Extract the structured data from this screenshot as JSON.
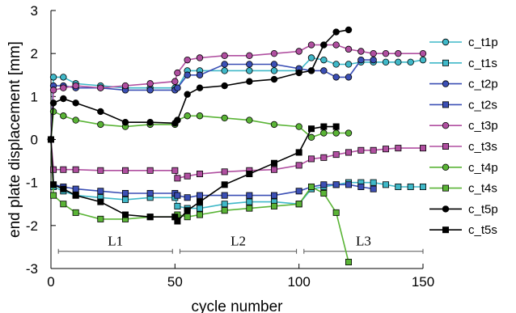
{
  "chart_data": {
    "type": "line",
    "xlabel": "cycle number",
    "ylabel": "end plate displacement [mm]",
    "xlim": [
      0,
      150
    ],
    "ylim": [
      -3,
      3
    ],
    "x_ticks": [
      0,
      50,
      100,
      150
    ],
    "y_ticks": [
      -3,
      -2,
      -1,
      0,
      1,
      2,
      3
    ],
    "grid": false,
    "legend": "right",
    "annotations": [
      {
        "label": "L1",
        "from": 3,
        "to": 49
      },
      {
        "label": "L2",
        "from": 52,
        "to": 99
      },
      {
        "label": "L3",
        "from": 102,
        "to": 150
      }
    ],
    "series": [
      {
        "name": "c_t1p",
        "color": "#3fb8c8",
        "marker": "circle",
        "points": [
          [
            0,
            0
          ],
          [
            1,
            1.45
          ],
          [
            5,
            1.45
          ],
          [
            10,
            1.3
          ],
          [
            20,
            1.25
          ],
          [
            30,
            1.2
          ],
          [
            40,
            1.2
          ],
          [
            50,
            1.2
          ],
          [
            51,
            1.2
          ],
          [
            55,
            1.6
          ],
          [
            60,
            1.6
          ],
          [
            70,
            1.6
          ],
          [
            80,
            1.6
          ],
          [
            90,
            1.6
          ],
          [
            100,
            1.6
          ],
          [
            105,
            1.9
          ],
          [
            110,
            1.85
          ],
          [
            115,
            1.75
          ],
          [
            120,
            1.75
          ],
          [
            125,
            1.8
          ],
          [
            130,
            1.8
          ],
          [
            135,
            1.8
          ],
          [
            140,
            1.8
          ],
          [
            145,
            1.8
          ],
          [
            150,
            1.85
          ]
        ]
      },
      {
        "name": "c_t1s",
        "color": "#3fb8c8",
        "marker": "square",
        "points": [
          [
            0,
            0
          ],
          [
            1,
            -1.1
          ],
          [
            5,
            -1.2
          ],
          [
            10,
            -1.3
          ],
          [
            20,
            -1.35
          ],
          [
            30,
            -1.4
          ],
          [
            40,
            -1.35
          ],
          [
            50,
            -1.35
          ],
          [
            51,
            -1.55
          ],
          [
            55,
            -1.6
          ],
          [
            60,
            -1.6
          ],
          [
            70,
            -1.5
          ],
          [
            80,
            -1.45
          ],
          [
            90,
            -1.45
          ],
          [
            100,
            -1.5
          ],
          [
            105,
            -1.15
          ],
          [
            110,
            -1.1
          ],
          [
            115,
            -1.05
          ],
          [
            120,
            -1.0
          ],
          [
            125,
            -1.0
          ],
          [
            130,
            -1.0
          ],
          [
            135,
            -1.05
          ],
          [
            140,
            -1.1
          ],
          [
            145,
            -1.1
          ],
          [
            150,
            -1.1
          ]
        ]
      },
      {
        "name": "c_t2p",
        "color": "#3b4fb5",
        "marker": "circle",
        "points": [
          [
            0,
            0
          ],
          [
            1,
            1.25
          ],
          [
            5,
            1.25
          ],
          [
            10,
            1.2
          ],
          [
            20,
            1.2
          ],
          [
            30,
            1.15
          ],
          [
            40,
            1.15
          ],
          [
            50,
            1.15
          ],
          [
            51,
            1.2
          ],
          [
            55,
            1.5
          ],
          [
            60,
            1.5
          ],
          [
            70,
            1.75
          ],
          [
            80,
            1.75
          ],
          [
            90,
            1.75
          ],
          [
            100,
            1.65
          ],
          [
            105,
            1.6
          ],
          [
            110,
            1.6
          ],
          [
            115,
            1.45
          ],
          [
            120,
            1.45
          ],
          [
            125,
            1.85
          ],
          [
            130,
            1.85
          ]
        ]
      },
      {
        "name": "c_t2s",
        "color": "#3b4fb5",
        "marker": "square",
        "points": [
          [
            0,
            0
          ],
          [
            1,
            -1.05
          ],
          [
            5,
            -1.1
          ],
          [
            10,
            -1.15
          ],
          [
            20,
            -1.2
          ],
          [
            30,
            -1.25
          ],
          [
            40,
            -1.25
          ],
          [
            50,
            -1.25
          ],
          [
            51,
            -1.3
          ],
          [
            55,
            -1.35
          ],
          [
            60,
            -1.3
          ],
          [
            70,
            -1.3
          ],
          [
            80,
            -1.3
          ],
          [
            90,
            -1.3
          ],
          [
            100,
            -1.2
          ],
          [
            105,
            -1.1
          ],
          [
            110,
            -1.05
          ],
          [
            115,
            -1.05
          ],
          [
            120,
            -1.05
          ],
          [
            125,
            -1.1
          ],
          [
            130,
            -1.15
          ]
        ]
      },
      {
        "name": "c_t3p",
        "color": "#b04fa0",
        "marker": "circle",
        "points": [
          [
            0,
            0
          ],
          [
            1,
            1.15
          ],
          [
            5,
            1.2
          ],
          [
            10,
            1.25
          ],
          [
            20,
            1.2
          ],
          [
            30,
            1.25
          ],
          [
            40,
            1.3
          ],
          [
            50,
            1.35
          ],
          [
            51,
            1.55
          ],
          [
            55,
            1.85
          ],
          [
            60,
            1.9
          ],
          [
            70,
            1.95
          ],
          [
            80,
            1.95
          ],
          [
            90,
            2.0
          ],
          [
            100,
            2.05
          ],
          [
            105,
            2.2
          ],
          [
            110,
            2.2
          ],
          [
            115,
            2.2
          ],
          [
            120,
            2.1
          ],
          [
            125,
            2.05
          ],
          [
            130,
            2.0
          ],
          [
            135,
            2.0
          ],
          [
            140,
            2.0
          ],
          [
            150,
            2.0
          ]
        ]
      },
      {
        "name": "c_t3s",
        "color": "#b04fa0",
        "marker": "square",
        "points": [
          [
            0,
            0
          ],
          [
            1,
            -0.7
          ],
          [
            5,
            -0.7
          ],
          [
            10,
            -0.7
          ],
          [
            20,
            -0.72
          ],
          [
            30,
            -0.72
          ],
          [
            40,
            -0.72
          ],
          [
            50,
            -0.72
          ],
          [
            51,
            -0.9
          ],
          [
            55,
            -0.85
          ],
          [
            60,
            -0.8
          ],
          [
            70,
            -0.75
          ],
          [
            80,
            -0.72
          ],
          [
            90,
            -0.7
          ],
          [
            100,
            -0.6
          ],
          [
            105,
            -0.45
          ],
          [
            110,
            -0.42
          ],
          [
            115,
            -0.35
          ],
          [
            120,
            -0.3
          ],
          [
            125,
            -0.25
          ],
          [
            130,
            -0.25
          ],
          [
            135,
            -0.22
          ],
          [
            140,
            -0.2
          ],
          [
            150,
            -0.2
          ]
        ]
      },
      {
        "name": "c_t4p",
        "color": "#5ab436",
        "marker": "circle",
        "points": [
          [
            0,
            0
          ],
          [
            1,
            0.65
          ],
          [
            5,
            0.55
          ],
          [
            10,
            0.45
          ],
          [
            20,
            0.35
          ],
          [
            30,
            0.3
          ],
          [
            40,
            0.35
          ],
          [
            50,
            0.35
          ],
          [
            51,
            0.45
          ],
          [
            55,
            0.55
          ],
          [
            60,
            0.55
          ],
          [
            70,
            0.5
          ],
          [
            80,
            0.45
          ],
          [
            90,
            0.35
          ],
          [
            100,
            0.3
          ],
          [
            105,
            0.05
          ],
          [
            110,
            0.15
          ],
          [
            115,
            0.15
          ],
          [
            120,
            0.15
          ]
        ]
      },
      {
        "name": "c_t4s",
        "color": "#5ab436",
        "marker": "square",
        "points": [
          [
            0,
            0
          ],
          [
            1,
            -1.3
          ],
          [
            5,
            -1.5
          ],
          [
            10,
            -1.7
          ],
          [
            20,
            -1.85
          ],
          [
            30,
            -1.85
          ],
          [
            40,
            -1.8
          ],
          [
            50,
            -1.8
          ],
          [
            51,
            -1.75
          ],
          [
            55,
            -1.8
          ],
          [
            60,
            -1.75
          ],
          [
            70,
            -1.65
          ],
          [
            80,
            -1.6
          ],
          [
            90,
            -1.55
          ],
          [
            100,
            -1.5
          ],
          [
            105,
            -1.1
          ],
          [
            110,
            -1.25
          ],
          [
            115,
            -1.7
          ],
          [
            120,
            -2.85
          ]
        ]
      },
      {
        "name": "c_t5p",
        "color": "#000000",
        "marker": "circle",
        "points": [
          [
            0,
            0
          ],
          [
            1,
            0.85
          ],
          [
            5,
            0.95
          ],
          [
            10,
            0.85
          ],
          [
            20,
            0.65
          ],
          [
            30,
            0.4
          ],
          [
            40,
            0.4
          ],
          [
            50,
            0.38
          ],
          [
            51,
            0.45
          ],
          [
            55,
            1.05
          ],
          [
            60,
            1.2
          ],
          [
            70,
            1.25
          ],
          [
            80,
            1.35
          ],
          [
            90,
            1.4
          ],
          [
            100,
            1.55
          ],
          [
            105,
            1.6
          ],
          [
            110,
            2.2
          ],
          [
            115,
            2.5
          ],
          [
            120,
            2.55
          ]
        ]
      },
      {
        "name": "c_t5s",
        "color": "#000000",
        "marker": "square",
        "points": [
          [
            0,
            0
          ],
          [
            1,
            -1.05
          ],
          [
            5,
            -1.15
          ],
          [
            10,
            -1.3
          ],
          [
            20,
            -1.45
          ],
          [
            30,
            -1.75
          ],
          [
            40,
            -1.8
          ],
          [
            50,
            -1.8
          ],
          [
            51,
            -1.9
          ],
          [
            55,
            -1.65
          ],
          [
            60,
            -1.45
          ],
          [
            70,
            -1.05
          ],
          [
            80,
            -0.8
          ],
          [
            90,
            -0.55
          ],
          [
            100,
            -0.3
          ],
          [
            105,
            0.25
          ],
          [
            110,
            0.3
          ],
          [
            115,
            0.3
          ]
        ]
      }
    ]
  }
}
